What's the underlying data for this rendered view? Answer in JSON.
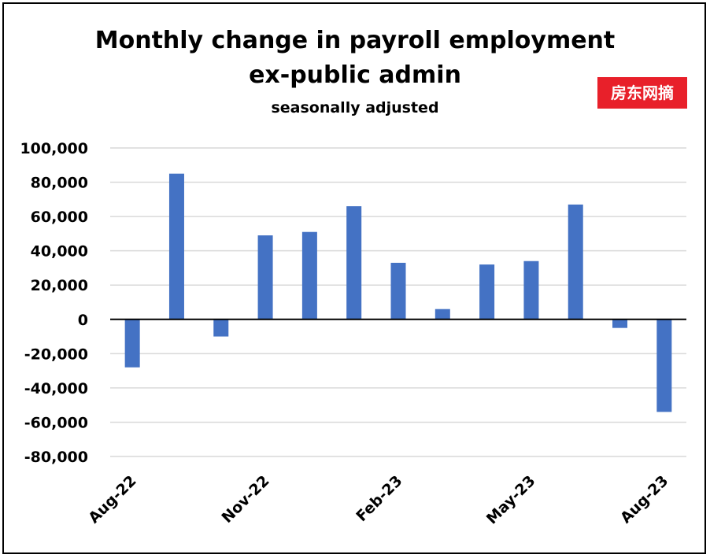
{
  "chart_data": {
    "type": "bar",
    "title_lines": [
      "Monthly change in payroll employment",
      "ex-public admin"
    ],
    "subtitle": "seasonally adjusted",
    "categories": [
      "Aug-22",
      "Sep-22",
      "Oct-22",
      "Nov-22",
      "Dec-22",
      "Jan-23",
      "Feb-23",
      "Mar-23",
      "Apr-23",
      "May-23",
      "Jun-23",
      "Jul-23",
      "Aug-23"
    ],
    "x_tick_labels": [
      "Aug-22",
      "Nov-22",
      "Feb-23",
      "May-23",
      "Aug-23"
    ],
    "values": [
      -28000,
      85000,
      -10000,
      49000,
      51000,
      66000,
      33000,
      6000,
      32000,
      34000,
      67000,
      -5000,
      -54000
    ],
    "y_ticks": [
      "100,000",
      "80,000",
      "60,000",
      "40,000",
      "20,000",
      "0",
      "-20,000",
      "-40,000",
      "-60,000",
      "-80,000"
    ],
    "ylim": [
      -80000,
      100000
    ],
    "grid": true,
    "bar_color": "#4472c4",
    "grid_color": "#d9d9d9"
  },
  "watermark": {
    "text": "房东网摘",
    "color": "#e8202a"
  }
}
